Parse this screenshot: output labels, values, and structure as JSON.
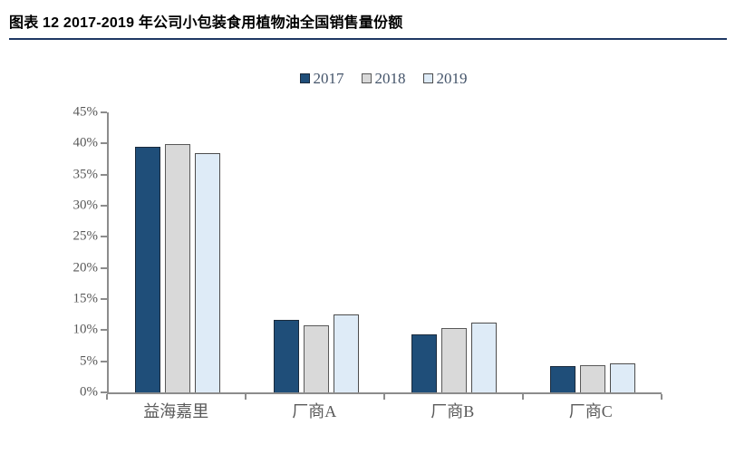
{
  "header": {
    "title": "图表 12 2017-2019 年公司小包装食用植物油全国销售量份额"
  },
  "colors": {
    "title_text": "#000000",
    "title_rule": "#1F3864",
    "axis_line": "#8C8C8C",
    "axis_text": "#595959",
    "legend_text": "#44546A",
    "series_2017_fill": "#1F4E79",
    "series_2017_border": "#1A2A3C",
    "series_2018_fill": "#D9D9D9",
    "series_2018_border": "#595959",
    "series_2019_fill": "#DEEBF7",
    "series_2019_border": "#4D4D4D"
  },
  "chart_data": {
    "type": "bar",
    "title": "",
    "categories": [
      "益海嘉里",
      "厂商A",
      "厂商B",
      "厂商C"
    ],
    "series": [
      {
        "name": "2017",
        "color": "#1F4E79",
        "border": "#1A2A3C",
        "values": [
          39.5,
          11.7,
          9.3,
          4.2
        ]
      },
      {
        "name": "2018",
        "color": "#D9D9D9",
        "border": "#595959",
        "values": [
          39.9,
          10.8,
          10.3,
          4.3
        ]
      },
      {
        "name": "2019",
        "color": "#DEEBF7",
        "border": "#4D4D4D",
        "values": [
          38.5,
          12.5,
          11.2,
          4.7
        ]
      }
    ],
    "ylabel": "",
    "xlabel": "",
    "ylim": [
      0,
      45
    ],
    "ytick_step": 5,
    "ytick_labels": [
      "0%",
      "5%",
      "10%",
      "15%",
      "20%",
      "25%",
      "30%",
      "35%",
      "40%",
      "45%"
    ],
    "grid": false,
    "legend_position": "top-center",
    "value_format": "percent"
  }
}
